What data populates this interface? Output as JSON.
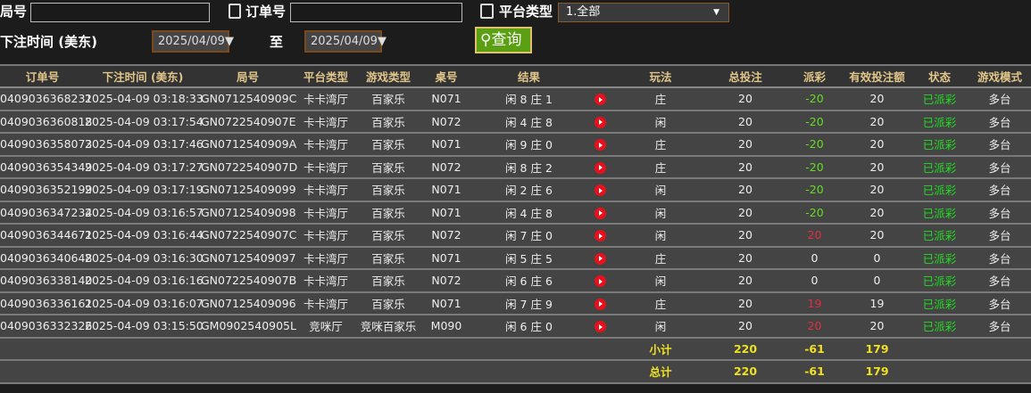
{
  "filters": {
    "round_label": "局号",
    "round_value": "",
    "order_label": "订单号",
    "order_value": "",
    "platform_label": "平台类型",
    "platform_value": "1.全部",
    "time_label": "下注时间 (美东)",
    "date_from": "2025/04/09",
    "to_label": "至",
    "date_to": "2025/04/09",
    "search_label": "查询"
  },
  "headers": [
    "订单号",
    "下注时间 (美东)",
    "局号",
    "平台类型",
    "游戏类型",
    "桌号",
    "结果",
    "",
    "玩法",
    "总投注",
    "派彩",
    "有效投注额",
    "状态",
    "游戏模式"
  ],
  "rows": [
    [
      "0409036368231",
      "2025-04-09 03:18:33",
      "GN0712540909C",
      "卡卡湾厅",
      "百家乐",
      "N071",
      "闲 8 庄 1",
      "庄",
      "20",
      "-20",
      "20",
      "已派彩",
      "多台"
    ],
    [
      "0409036360818",
      "2025-04-09 03:17:54",
      "GN0722540907E",
      "卡卡湾厅",
      "百家乐",
      "N072",
      "闲 4 庄 8",
      "闲",
      "20",
      "-20",
      "20",
      "已派彩",
      "多台"
    ],
    [
      "0409036358073",
      "2025-04-09 03:17:46",
      "GN0712540909A",
      "卡卡湾厅",
      "百家乐",
      "N071",
      "闲 9 庄 0",
      "庄",
      "20",
      "-20",
      "20",
      "已派彩",
      "多台"
    ],
    [
      "0409036354349",
      "2025-04-09 03:17:27",
      "GN0722540907D",
      "卡卡湾厅",
      "百家乐",
      "N072",
      "闲 8 庄 2",
      "庄",
      "20",
      "-20",
      "20",
      "已派彩",
      "多台"
    ],
    [
      "0409036352199",
      "2025-04-09 03:17:19",
      "GN07125409099",
      "卡卡湾厅",
      "百家乐",
      "N071",
      "闲 2 庄 6",
      "闲",
      "20",
      "-20",
      "20",
      "已派彩",
      "多台"
    ],
    [
      "0409036347234",
      "2025-04-09 03:16:57",
      "GN07125409098",
      "卡卡湾厅",
      "百家乐",
      "N071",
      "闲 4 庄 8",
      "闲",
      "20",
      "-20",
      "20",
      "已派彩",
      "多台"
    ],
    [
      "0409036344671",
      "2025-04-09 03:16:44",
      "GN0722540907C",
      "卡卡湾厅",
      "百家乐",
      "N072",
      "闲 7 庄 0",
      "闲",
      "20",
      "20",
      "20",
      "已派彩",
      "多台"
    ],
    [
      "0409036340648",
      "2025-04-09 03:16:30",
      "GN07125409097",
      "卡卡湾厅",
      "百家乐",
      "N071",
      "闲 5 庄 5",
      "庄",
      "20",
      "0",
      "0",
      "已派彩",
      "多台"
    ],
    [
      "0409036338140",
      "2025-04-09 03:16:16",
      "GN0722540907B",
      "卡卡湾厅",
      "百家乐",
      "N072",
      "闲 6 庄 6",
      "闲",
      "20",
      "0",
      "0",
      "已派彩",
      "多台"
    ],
    [
      "0409036336161",
      "2025-04-09 03:16:07",
      "GN07125409096",
      "卡卡湾厅",
      "百家乐",
      "N071",
      "闲 7 庄 9",
      "庄",
      "20",
      "19",
      "19",
      "已派彩",
      "多台"
    ],
    [
      "0409036332326",
      "2025-04-09 03:15:50",
      "GM0902540905L",
      "竞咪厅",
      "竞咪百家乐",
      "M090",
      "闲 6 庄 0",
      "闲",
      "20",
      "20",
      "20",
      "已派彩",
      "多台"
    ]
  ],
  "subtotal": {
    "label": "小计",
    "bet": "220",
    "payout": "-61",
    "valid": "179"
  },
  "total": {
    "label": "总计",
    "bet": "220",
    "payout": "-61",
    "valid": "179"
  },
  "colors": {
    "accent": "#5aa012",
    "header_text": "#e0c68a",
    "positive": "#e03040",
    "negative": "#66dd22",
    "status": "#22dd22",
    "sum": "#f0e020"
  }
}
